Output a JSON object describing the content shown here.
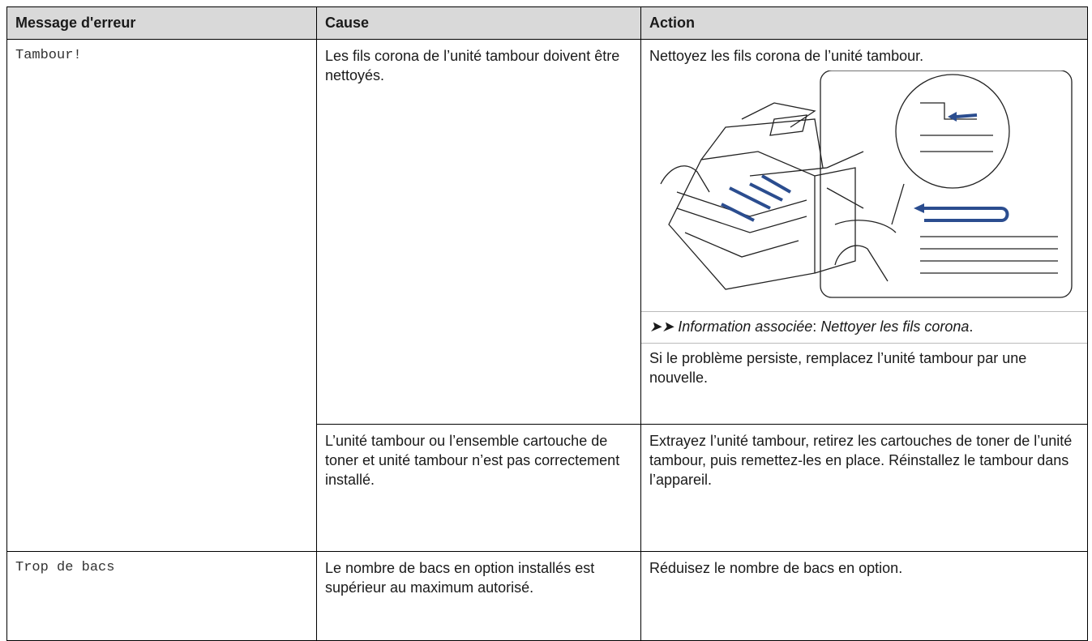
{
  "table": {
    "header": [
      "Message d'erreur",
      "Cause",
      "Action"
    ],
    "rows": [
      {
        "message": "Tambour!",
        "entries": [
          {
            "cause": "Les fils corona de l’unité tambour doivent être nettoyés.",
            "action": {
              "text": "Nettoyez les fils corona de l’unité tambour.",
              "related": {
                "label": "Information associée",
                "separator": ":",
                "link": "Nettoyer les fils corona",
                "end": "."
              },
              "note": "Si le problème persiste, remplacez l’unité tambour par une nouvelle."
            }
          },
          {
            "cause": "L’unité tambour ou l’ensemble cartouche de toner et unité tambour n’est pas correctement installé.",
            "action": {
              "text": "Extrayez l’unité tambour, retirez les cartouches de toner de l’unité tambour, puis remettez-les en place. Réinstallez le tambour dans l’appareil."
            }
          }
        ]
      },
      {
        "message": "Trop de bacs",
        "entries": [
          {
            "cause": "Le nombre de bacs en option installés est supérieur au maximum autorisé.",
            "action": {
              "text": "Réduisez le nombre de bacs en option."
            }
          }
        ]
      }
    ]
  }
}
